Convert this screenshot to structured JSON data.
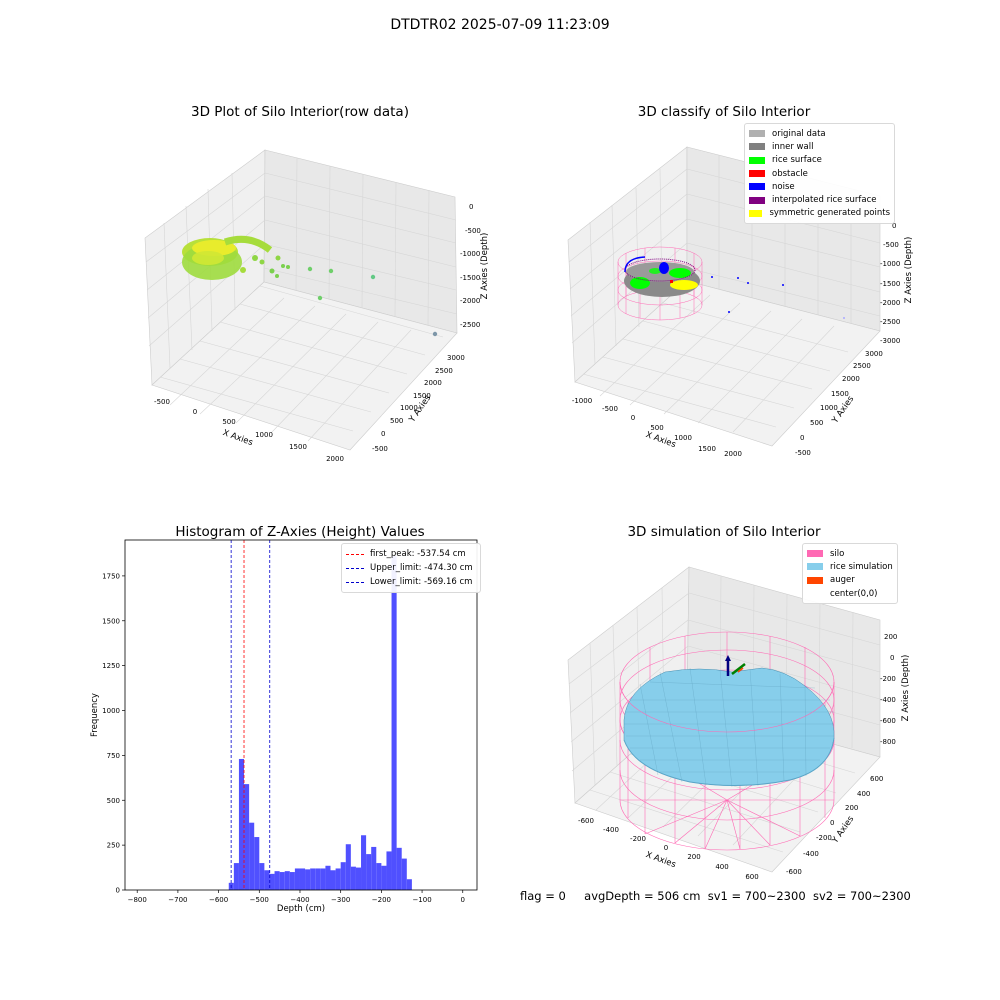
{
  "suptitle": "DTDTR02 2025-07-09 11:23:09",
  "panel_tl": {
    "title": "3D Plot of Silo Interior(row data)",
    "xlabel": "X Axies",
    "ylabel": "Y Axies",
    "zlabel": "Z Axies (Depth)",
    "xticks": [
      "-500",
      "0",
      "500",
      "1000",
      "1500",
      "2000"
    ],
    "yticks": [
      "-500",
      "0",
      "500",
      "1000",
      "1500",
      "2000",
      "2500",
      "3000"
    ],
    "zticks": [
      "0",
      "-500",
      "-1000",
      "-1500",
      "-2000",
      "-2500"
    ]
  },
  "panel_tr": {
    "title": "3D classify of Silo Interior",
    "xlabel": "X Axies",
    "ylabel": "Y Axies",
    "zlabel": "Z Axies (Depth)",
    "xticks": [
      "-1000",
      "-500",
      "0",
      "500",
      "1000",
      "1500",
      "2000"
    ],
    "yticks": [
      "-500",
      "0",
      "500",
      "1000",
      "1500",
      "2000",
      "2500",
      "3000"
    ],
    "zticks": [
      "0",
      "-500",
      "-1000",
      "-1500",
      "-2000",
      "-2500",
      "-3000"
    ],
    "legend": [
      {
        "label": "original data",
        "color": "#b0b0b0"
      },
      {
        "label": "inner wall",
        "color": "#808080"
      },
      {
        "label": "rice surface",
        "color": "#00ff00"
      },
      {
        "label": "obstacle",
        "color": "#ff0000"
      },
      {
        "label": "noise",
        "color": "#0000ff"
      },
      {
        "label": "interpolated rice surface",
        "color": "#800080"
      },
      {
        "label": "symmetric generated points",
        "color": "#ffff00"
      }
    ]
  },
  "panel_br": {
    "title": "3D simulation of Silo Interior",
    "xlabel": "X Axies",
    "ylabel": "Y Axies",
    "zlabel": "Z Axies (Depth)",
    "xticks": [
      "-600",
      "-400",
      "-200",
      "0",
      "200",
      "400",
      "600"
    ],
    "yticks": [
      "-600",
      "-400",
      "-200",
      "0",
      "200",
      "400",
      "600"
    ],
    "zticks": [
      "200",
      "0",
      "-200",
      "-400",
      "-600",
      "-800"
    ],
    "legend": [
      {
        "label": "silo",
        "color": "#ff69b4"
      },
      {
        "label": "rice simulation",
        "color": "#87ceeb"
      },
      {
        "label": "auger",
        "color": "#ff4500"
      },
      {
        "label": "center(0,0)",
        "color": "#ffffff"
      }
    ]
  },
  "footer": {
    "flag": "flag = 0",
    "avg": "avgDepth = 506 cm",
    "sv1": "sv1 = 700~2300",
    "sv2": "sv2 = 700~2300"
  },
  "chart_data": [
    {
      "type": "scatter",
      "title": "3D Plot of Silo Interior(row data)",
      "xlabel": "X Axies",
      "ylabel": "Y Axies",
      "zlabel": "Z Axies (Depth)",
      "xlim": [
        -700,
        2000
      ],
      "ylim": [
        -500,
        3000
      ],
      "zlim": [
        -2800,
        0
      ]
    },
    {
      "type": "scatter",
      "title": "3D classify of Silo Interior",
      "xlabel": "X Axies",
      "ylabel": "Y Axies",
      "zlabel": "Z Axies (Depth)",
      "xlim": [
        -1100,
        2200
      ],
      "ylim": [
        -500,
        3000
      ],
      "zlim": [
        -3000,
        0
      ],
      "series": [
        {
          "name": "original data"
        },
        {
          "name": "inner wall"
        },
        {
          "name": "rice surface"
        },
        {
          "name": "obstacle"
        },
        {
          "name": "noise"
        },
        {
          "name": "interpolated rice surface"
        },
        {
          "name": "symmetric generated points"
        }
      ]
    },
    {
      "type": "bar",
      "title": "Histogram of Z-Axies (Height) Values",
      "xlabel": "Depth (cm)",
      "ylabel": "Frequency",
      "xlim": [
        -830,
        35
      ],
      "ylim": [
        0,
        1950
      ],
      "xticks": [
        -800,
        -700,
        -600,
        -500,
        -400,
        -300,
        -200,
        -100,
        0
      ],
      "yticks": [
        0,
        250,
        500,
        750,
        1000,
        1250,
        1500,
        1750
      ],
      "bin_start": -575,
      "bin_width": 12.5,
      "values": [
        40,
        150,
        730,
        590,
        375,
        295,
        150,
        110,
        90,
        105,
        100,
        105,
        100,
        120,
        120,
        115,
        120,
        120,
        120,
        135,
        110,
        120,
        155,
        255,
        130,
        125,
        305,
        200,
        240,
        150,
        135,
        215,
        1860,
        235,
        175,
        60
      ],
      "vlines": [
        {
          "label": "first_peak: -537.54 cm",
          "x": -537.54,
          "color": "#ff0000"
        },
        {
          "label": "Upper_limit: -474.30 cm",
          "x": -474.3,
          "color": "#0000cc"
        },
        {
          "label": "Lower_limit: -569.16 cm",
          "x": -569.16,
          "color": "#0000cc"
        }
      ],
      "bar_color": "#5050ff"
    },
    {
      "type": "scatter",
      "title": "3D simulation of Silo Interior",
      "xlabel": "X Axies",
      "ylabel": "Y Axies",
      "zlabel": "Z Axies (Depth)",
      "xlim": [
        -700,
        700
      ],
      "ylim": [
        -700,
        700
      ],
      "zlim": [
        -900,
        350
      ],
      "series": [
        {
          "name": "silo"
        },
        {
          "name": "rice simulation"
        },
        {
          "name": "auger"
        },
        {
          "name": "center(0,0)"
        }
      ]
    }
  ]
}
